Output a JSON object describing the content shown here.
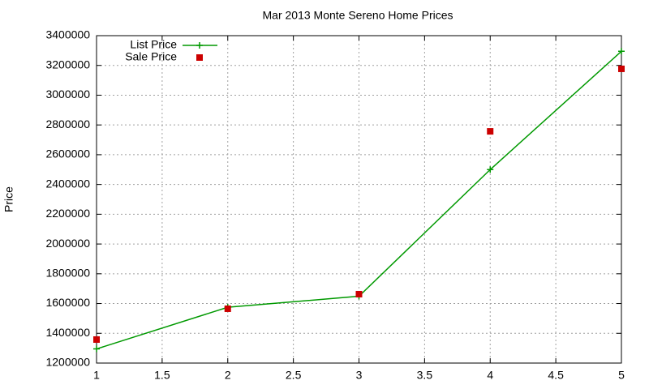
{
  "chart_data": {
    "type": "line",
    "title": "Mar 2013 Monte Sereno Home Prices",
    "y_label": "Price",
    "x": [
      1,
      2,
      3,
      4,
      5
    ],
    "series": [
      {
        "name": "List Price",
        "color": "#009900",
        "style": "linespoints",
        "values": [
          1295000,
          1575000,
          1649000,
          2500000,
          3295000
        ]
      },
      {
        "name": "Sale Price",
        "color": "#cc0000",
        "style": "points",
        "values": [
          1358000,
          1565000,
          1663000,
          2757000,
          3177000
        ]
      }
    ],
    "xlim": [
      1,
      5
    ],
    "xticks": [
      1,
      1.5,
      2,
      2.5,
      3,
      3.5,
      4,
      4.5,
      5
    ],
    "ylim": [
      1200000,
      3400000
    ],
    "yticks": [
      1200000,
      1400000,
      1600000,
      1800000,
      2000000,
      2200000,
      2400000,
      2600000,
      2800000,
      3000000,
      3200000,
      3400000
    ],
    "grid": true,
    "legend": "top-left"
  }
}
